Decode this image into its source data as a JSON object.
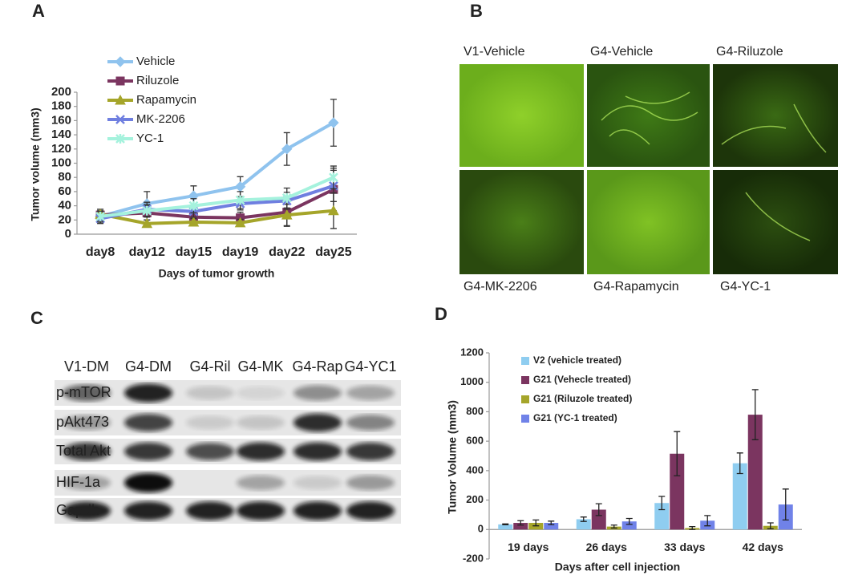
{
  "panel_labels": [
    "A",
    "B",
    "C",
    "D"
  ],
  "images": {
    "labels": [
      "V1-Vehicle",
      "G4-Vehicle",
      "G4-Riluzole",
      "G4-MK-2206",
      "G4-Rapamycin",
      "G4-YC-1"
    ]
  },
  "blot": {
    "columns": [
      "V1-DM",
      "G4-DM",
      "G4-Ril",
      "G4-MK",
      "G4-Rap",
      "G4-YC1"
    ],
    "rows": [
      "p-mTOR",
      "pAkt473",
      "Total Akt",
      "HIF-1a",
      "Gapdh"
    ]
  },
  "chart_data": [
    {
      "type": "line",
      "y_label": "Tumor volume (mm3)",
      "x_label": "Days of tumor growth",
      "legend": "upper left",
      "categories": [
        "day8",
        "day12",
        "day15",
        "day19",
        "day22",
        "day25"
      ],
      "ylim": [
        0,
        200
      ],
      "yticks": [
        0,
        20,
        40,
        60,
        80,
        100,
        120,
        140,
        160,
        180,
        200
      ],
      "series": [
        {
          "name": "Vehicle",
          "color": "#8fc3ee",
          "marker": "diamond",
          "values": [
            25,
            43,
            54,
            67,
            120,
            157
          ],
          "errors": [
            10,
            17,
            14,
            14,
            23,
            33
          ]
        },
        {
          "name": "Riluzole",
          "color": "#7b3560",
          "marker": "square",
          "values": [
            27,
            30,
            24,
            23,
            31,
            63
          ],
          "errors": [
            8,
            10,
            8,
            8,
            20,
            30
          ]
        },
        {
          "name": "Rapamycin",
          "color": "#a5a52a",
          "marker": "triangle",
          "values": [
            28,
            15,
            17,
            16,
            27,
            33
          ],
          "errors": [
            5,
            5,
            5,
            5,
            15,
            25
          ]
        },
        {
          "name": "MK-2206",
          "color": "#6f7fe0",
          "marker": "x",
          "values": [
            22,
            35,
            32,
            43,
            47,
            68
          ],
          "errors": [
            6,
            10,
            8,
            9,
            12,
            22
          ]
        },
        {
          "name": "YC-1",
          "color": "#a5f2dd",
          "marker": "asterisk",
          "values": [
            25,
            33,
            40,
            48,
            51,
            80
          ],
          "errors": [
            7,
            9,
            10,
            12,
            14,
            16
          ]
        }
      ]
    },
    {
      "type": "bar",
      "y_label": "Tumor Volume (mm3)",
      "x_label": "Days after cell injection",
      "legend": "upper left",
      "categories": [
        "19 days",
        "26 days",
        "33 days",
        "42 days"
      ],
      "ylim": [
        -200,
        1200
      ],
      "yticks": [
        -200,
        0,
        200,
        400,
        600,
        800,
        1000,
        1200
      ],
      "series": [
        {
          "name": "V2 (vehicle treated)",
          "color": "#8fcdf0",
          "values": [
            35,
            70,
            180,
            450
          ],
          "errors": [
            3,
            15,
            45,
            70
          ]
        },
        {
          "name": "G21 (Vehecle treated)",
          "color": "#7b3560",
          "values": [
            45,
            135,
            515,
            780
          ],
          "errors": [
            15,
            40,
            150,
            170
          ]
        },
        {
          "name": "G21 (Riluzole treated)",
          "color": "#a5a52a",
          "values": [
            45,
            20,
            10,
            25
          ],
          "errors": [
            20,
            10,
            10,
            20
          ]
        },
        {
          "name": "G21 (YC-1 treated)",
          "color": "#7082e8",
          "values": [
            45,
            55,
            60,
            170
          ],
          "errors": [
            12,
            20,
            35,
            105
          ]
        }
      ]
    }
  ]
}
